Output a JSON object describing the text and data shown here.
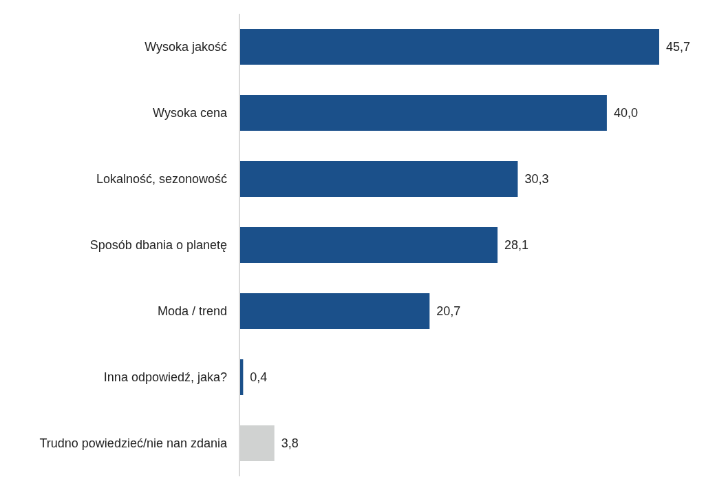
{
  "chart_data": {
    "type": "bar",
    "orientation": "horizontal",
    "categories": [
      "Wysoka jakość",
      "Wysoka cena",
      "Lokalność, sezonowość",
      "Sposób dbania o planetę",
      "Moda / trend",
      "Inna odpowiedź, jaka?",
      "Trudno powiedzieć/nie nan zdania"
    ],
    "values": [
      45.7,
      40.0,
      30.3,
      28.1,
      20.7,
      0.4,
      3.8
    ],
    "colors": [
      "#1b508a",
      "#1b508a",
      "#1b508a",
      "#1b508a",
      "#1b508a",
      "#1b508a",
      "#d0d2d1"
    ],
    "value_labels": [
      "45,7",
      "40,0",
      "30,3",
      "28,1",
      "20,7",
      "0,4",
      "3,8"
    ],
    "data_labels": true
  }
}
